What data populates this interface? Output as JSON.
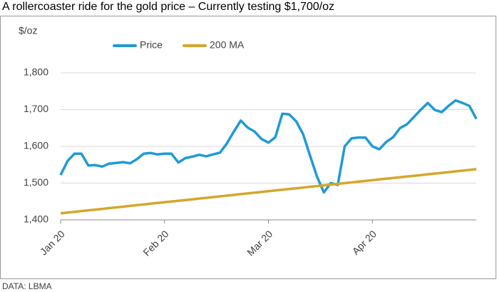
{
  "chart_data": {
    "type": "line",
    "title": "A rollercoaster ride for the gold price – Currently testing $1,700/oz",
    "y_label": "$/oz",
    "source": "DATA: LBMA",
    "categories": [
      "Jan 20",
      null,
      null,
      null,
      null,
      null,
      null,
      null,
      null,
      null,
      null,
      null,
      null,
      null,
      null,
      "Feb 20",
      null,
      null,
      null,
      null,
      null,
      null,
      null,
      null,
      null,
      null,
      null,
      null,
      null,
      null,
      "Mar 20",
      null,
      null,
      null,
      null,
      null,
      null,
      null,
      null,
      null,
      null,
      null,
      null,
      null,
      null,
      "Apr 20",
      null,
      null,
      null,
      null,
      null,
      null,
      null,
      null,
      null,
      null,
      null,
      null,
      null,
      null,
      null
    ],
    "series": [
      {
        "name": "Price",
        "color": "#1f9ad6",
        "values": [
          1522,
          1560,
          1580,
          1580,
          1548,
          1549,
          1545,
          1553,
          1555,
          1557,
          1554,
          1565,
          1580,
          1582,
          1578,
          1580,
          1580,
          1556,
          1568,
          1572,
          1577,
          1573,
          1578,
          1583,
          1608,
          1640,
          1670,
          1651,
          1640,
          1620,
          1610,
          1625,
          1689,
          1687,
          1668,
          1633,
          1575,
          1518,
          1475,
          1500,
          1495,
          1600,
          1622,
          1624,
          1624,
          1600,
          1592,
          1612,
          1625,
          1650,
          1660,
          1680,
          1700,
          1718,
          1699,
          1693,
          1710,
          1725,
          1718,
          1710,
          1675
        ]
      },
      {
        "name": "200 MA",
        "color": "#d4a72c",
        "values": [
          1418,
          1420,
          1422,
          1424,
          1426,
          1428,
          1430,
          1432,
          1434,
          1436,
          1438,
          1440,
          1442,
          1444,
          1446,
          1448,
          1450,
          1452,
          1454,
          1456,
          1458,
          1460,
          1462,
          1464,
          1466,
          1468,
          1470,
          1472,
          1474,
          1476,
          1478,
          1480,
          1482,
          1484,
          1486,
          1488,
          1490,
          1492,
          1494,
          1496,
          1498,
          1500,
          1502,
          1504,
          1506,
          1508,
          1510,
          1512,
          1514,
          1516,
          1518,
          1520,
          1522,
          1524,
          1526,
          1528,
          1530,
          1532,
          1534,
          1536,
          1538
        ]
      }
    ],
    "ylim": [
      1400,
      1800
    ],
    "yticks": [
      {
        "value": 1400,
        "label": "1,400"
      },
      {
        "value": 1500,
        "label": "1,500"
      },
      {
        "value": 1600,
        "label": "1,600"
      },
      {
        "value": 1700,
        "label": "1,700"
      },
      {
        "value": 1800,
        "label": "1,800"
      }
    ],
    "grid": true,
    "legend": "top"
  }
}
